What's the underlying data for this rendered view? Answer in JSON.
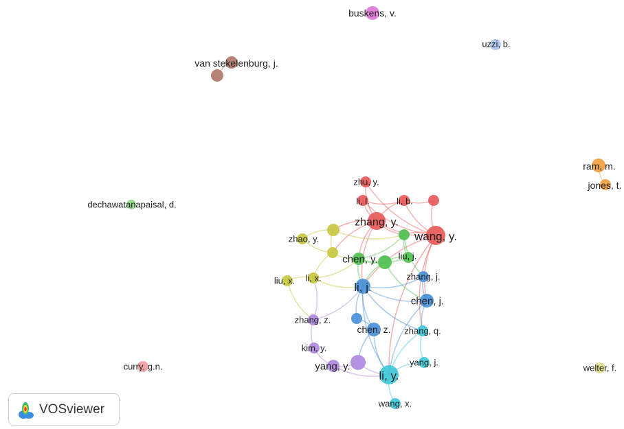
{
  "network": {
    "nodes": [
      {
        "id": "buskens_v",
        "label": "buskens, v.",
        "color": "#e07ad6"
      },
      {
        "id": "uzzi_b",
        "label": "uzzi, b.",
        "color": "#a8c4f0"
      },
      {
        "id": "vanstek_a",
        "label": "van stekelenburg, j.",
        "color": "#b07a6a"
      },
      {
        "id": "vanstek_b",
        "label": "",
        "color": "#b07a6a"
      },
      {
        "id": "ram_m",
        "label": "ram, m.",
        "color": "#f0a040"
      },
      {
        "id": "jones_t",
        "label": "jones, t.",
        "color": "#f0a040"
      },
      {
        "id": "dechawatanapaisal_d",
        "label": "dechawatanapaisal, d.",
        "color": "#90d88a"
      },
      {
        "id": "curry_gn",
        "label": "curry, g.n.",
        "color": "#f0a0a0"
      },
      {
        "id": "welter_f",
        "label": "welter, f.",
        "color": "#e0e090"
      },
      {
        "id": "zhu_y",
        "label": "zhu, y.",
        "color": "#e85a5a"
      },
      {
        "id": "li_l",
        "label": "li, l.",
        "color": "#e85a5a"
      },
      {
        "id": "li_b",
        "label": "li, b.",
        "color": "#e85a5a"
      },
      {
        "id": "red_x",
        "label": "",
        "color": "#e85a5a"
      },
      {
        "id": "zhang_y",
        "label": "zhang, y.",
        "color": "#e85a5a"
      },
      {
        "id": "wang_y",
        "label": "wang, y.",
        "color": "#e85a5a"
      },
      {
        "id": "yel_top",
        "label": "",
        "color": "#c8c840"
      },
      {
        "id": "zhao_y",
        "label": "zhao, y.",
        "color": "#c8c840"
      },
      {
        "id": "yel_mid",
        "label": "",
        "color": "#c8c840"
      },
      {
        "id": "li_x",
        "label": "li, x.",
        "color": "#c8c840"
      },
      {
        "id": "liu_x",
        "label": "liu, x.",
        "color": "#c8c840"
      },
      {
        "id": "grn_top",
        "label": "",
        "color": "#50c050"
      },
      {
        "id": "chen_y",
        "label": "chen, y.",
        "color": "#50c050"
      },
      {
        "id": "liu_j",
        "label": "liu, j.",
        "color": "#50c050"
      },
      {
        "id": "grn_low",
        "label": "",
        "color": "#50c050"
      },
      {
        "id": "li_j",
        "label": "li, j.",
        "color": "#4a90d8"
      },
      {
        "id": "zhang_j",
        "label": "zhang, j.",
        "color": "#4a90d8"
      },
      {
        "id": "chen_j",
        "label": "chen, j.",
        "color": "#4a90d8"
      },
      {
        "id": "blu_small",
        "label": "",
        "color": "#4a90d8"
      },
      {
        "id": "chen_z",
        "label": "chen, z.",
        "color": "#4a90d8"
      },
      {
        "id": "zhang_q",
        "label": "zhang, q.",
        "color": "#40c8d8"
      },
      {
        "id": "yang_j",
        "label": "yang, j.",
        "color": "#40c8d8"
      },
      {
        "id": "li_y",
        "label": "li, y.",
        "color": "#40c8d8"
      },
      {
        "id": "wang_x",
        "label": "wang, x.",
        "color": "#40c8d8"
      },
      {
        "id": "zhang_z",
        "label": "zhang, z.",
        "color": "#b08ae0"
      },
      {
        "id": "kim_y",
        "label": "kim, y.",
        "color": "#b08ae0"
      },
      {
        "id": "yang_y",
        "label": "yang, y.",
        "color": "#b08ae0"
      },
      {
        "id": "pur_big",
        "label": "",
        "color": "#b08ae0"
      }
    ],
    "edges": [
      [
        "vanstek_a",
        "vanstek_b"
      ],
      [
        "ram_m",
        "jones_t"
      ],
      [
        "zhu_y",
        "zhang_y"
      ],
      [
        "li_l",
        "zhang_y"
      ],
      [
        "li_b",
        "zhang_y"
      ],
      [
        "li_b",
        "red_x"
      ],
      [
        "red_x",
        "wang_y"
      ],
      [
        "zhang_y",
        "wang_y"
      ],
      [
        "li_l",
        "wang_y"
      ],
      [
        "zhu_y",
        "wang_y"
      ],
      [
        "li_b",
        "wang_y"
      ],
      [
        "zhang_y",
        "yel_top"
      ],
      [
        "zhang_y",
        "yel_mid"
      ],
      [
        "zhang_y",
        "chen_y"
      ],
      [
        "zhang_y",
        "li_j"
      ],
      [
        "zhang_y",
        "grn_top"
      ],
      [
        "wang_y",
        "grn_top"
      ],
      [
        "wang_y",
        "chen_j"
      ],
      [
        "wang_y",
        "li_j"
      ],
      [
        "wang_y",
        "zhang_q"
      ],
      [
        "wang_y",
        "li_y"
      ],
      [
        "yel_top",
        "zhao_y"
      ],
      [
        "yel_top",
        "yel_mid"
      ],
      [
        "zhao_y",
        "yel_mid"
      ],
      [
        "yel_mid",
        "li_x"
      ],
      [
        "li_x",
        "liu_x"
      ],
      [
        "yel_mid",
        "chen_y"
      ],
      [
        "li_x",
        "chen_y"
      ],
      [
        "li_x",
        "li_j"
      ],
      [
        "yel_top",
        "grn_top"
      ],
      [
        "chen_y",
        "grn_top"
      ],
      [
        "chen_y",
        "liu_j"
      ],
      [
        "grn_top",
        "liu_j"
      ],
      [
        "chen_y",
        "grn_low"
      ],
      [
        "liu_j",
        "grn_low"
      ],
      [
        "chen_y",
        "li_j"
      ],
      [
        "grn_top",
        "zhang_j"
      ],
      [
        "grn_low",
        "li_j"
      ],
      [
        "grn_low",
        "chen_j"
      ],
      [
        "li_j",
        "zhang_j"
      ],
      [
        "li_j",
        "chen_j"
      ],
      [
        "li_j",
        "chen_z"
      ],
      [
        "li_j",
        "blu_small"
      ],
      [
        "li_j",
        "li_y"
      ],
      [
        "zhang_j",
        "chen_j"
      ],
      [
        "chen_j",
        "zhang_q"
      ],
      [
        "chen_z",
        "blu_small"
      ],
      [
        "chen_z",
        "li_y"
      ],
      [
        "chen_j",
        "li_y"
      ],
      [
        "zhang_q",
        "li_y"
      ],
      [
        "zhang_q",
        "yang_j"
      ],
      [
        "yang_j",
        "li_y"
      ],
      [
        "li_y",
        "wang_x"
      ],
      [
        "li_j",
        "zhang_q"
      ],
      [
        "zhang_z",
        "kim_y"
      ],
      [
        "kim_y",
        "yang_y"
      ],
      [
        "yang_y",
        "pur_big"
      ],
      [
        "pur_big",
        "li_y"
      ],
      [
        "yang_y",
        "li_y"
      ],
      [
        "zhang_z",
        "li_x"
      ],
      [
        "liu_x",
        "zhang_z"
      ],
      [
        "zhang_z",
        "li_j"
      ],
      [
        "chen_z",
        "pur_big"
      ],
      [
        "li_l",
        "li_b"
      ]
    ]
  },
  "brand": {
    "name": "VOSviewer"
  }
}
